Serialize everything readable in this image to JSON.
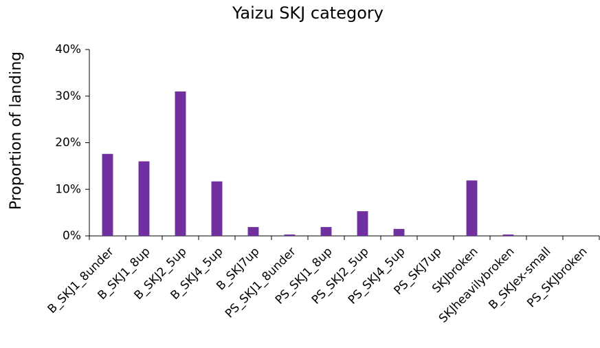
{
  "chart_data": {
    "type": "bar",
    "title": "Yaizu SKJ category",
    "y_label": "Proportion of landing",
    "categories": [
      "B_SKJ1_8under",
      "B_SKJ1_8up",
      "B_SKJ2_5up",
      "B_SKJ4_5up",
      "B_SKJ7up",
      "PS_SKJ1_8under",
      "PS_SKJ1_8up",
      "PS_SKJ2_5up",
      "PS_SKJ4_5up",
      "PS_SKJ7up",
      "SKJbroken",
      "SKJheavilybroken",
      "B_SKJex-small",
      "PS_SKJbroken"
    ],
    "values": [
      17.6,
      16.0,
      31.0,
      11.7,
      1.9,
      0.3,
      1.9,
      5.3,
      1.5,
      0,
      11.9,
      0.3,
      0,
      0
    ],
    "color": "#7030a0",
    "ylim": [
      0,
      40
    ],
    "yticks": [
      {
        "value": 0,
        "label": "0%"
      },
      {
        "value": 10,
        "label": "10%"
      },
      {
        "value": 20,
        "label": "20%"
      },
      {
        "value": 30,
        "label": "30%"
      },
      {
        "value": 40,
        "label": "40%"
      }
    ],
    "grid": false
  }
}
